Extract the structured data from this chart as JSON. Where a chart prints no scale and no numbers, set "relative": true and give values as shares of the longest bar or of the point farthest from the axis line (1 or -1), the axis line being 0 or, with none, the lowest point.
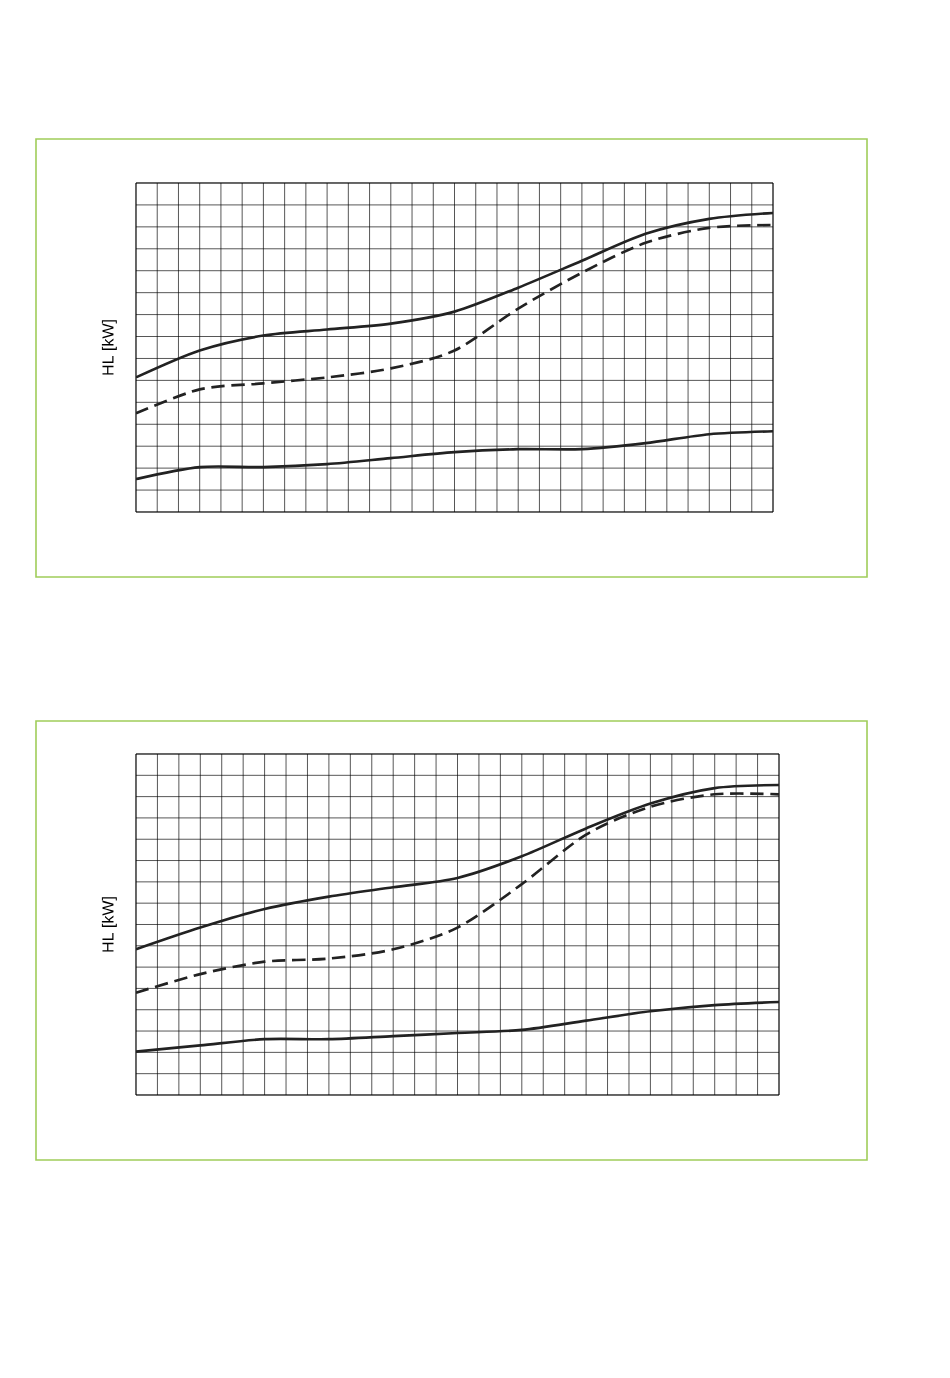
{
  "chart_data": [
    {
      "type": "line",
      "ylabel": "HL [kW]",
      "relative": true,
      "grid": true,
      "marker": "none",
      "categories": [
        null,
        null,
        null,
        null,
        null,
        null,
        null,
        null,
        null,
        null,
        null
      ],
      "series": [
        {
          "color": "#222222",
          "line_style": "solid",
          "values": [
            0.45,
            0.54,
            0.59,
            0.61,
            0.63,
            0.67,
            0.75,
            0.84,
            0.93,
            0.98,
            1
          ]
        },
        {
          "color": "#222222",
          "line_style": "dashed",
          "values": [
            0.33,
            0.41,
            0.43,
            0.45,
            0.48,
            0.54,
            0.68,
            0.8,
            0.9,
            0.95,
            0.96
          ]
        },
        {
          "color": "#222222",
          "line_style": "solid",
          "values": [
            0.11,
            0.15,
            0.15,
            0.16,
            0.18,
            0.2,
            0.21,
            0.21,
            0.23,
            0.26,
            0.27
          ]
        }
      ]
    },
    {
      "type": "line",
      "ylabel": "HL [kW]",
      "relative": true,
      "grid": true,
      "marker": "none",
      "categories": [
        null,
        null,
        null,
        null,
        null,
        null,
        null,
        null,
        null,
        null,
        null
      ],
      "series": [
        {
          "color": "#222222",
          "line_style": "solid",
          "values": [
            0.47,
            0.54,
            0.6,
            0.64,
            0.67,
            0.7,
            0.77,
            0.86,
            0.94,
            0.99,
            1
          ]
        },
        {
          "color": "#222222",
          "line_style": "dashed",
          "values": [
            0.33,
            0.39,
            0.43,
            0.44,
            0.47,
            0.54,
            0.68,
            0.84,
            0.93,
            0.97,
            0.97
          ]
        },
        {
          "color": "#222222",
          "line_style": "solid",
          "values": [
            0.14,
            0.16,
            0.18,
            0.18,
            0.19,
            0.2,
            0.21,
            0.24,
            0.27,
            0.29,
            0.3
          ]
        }
      ]
    }
  ]
}
